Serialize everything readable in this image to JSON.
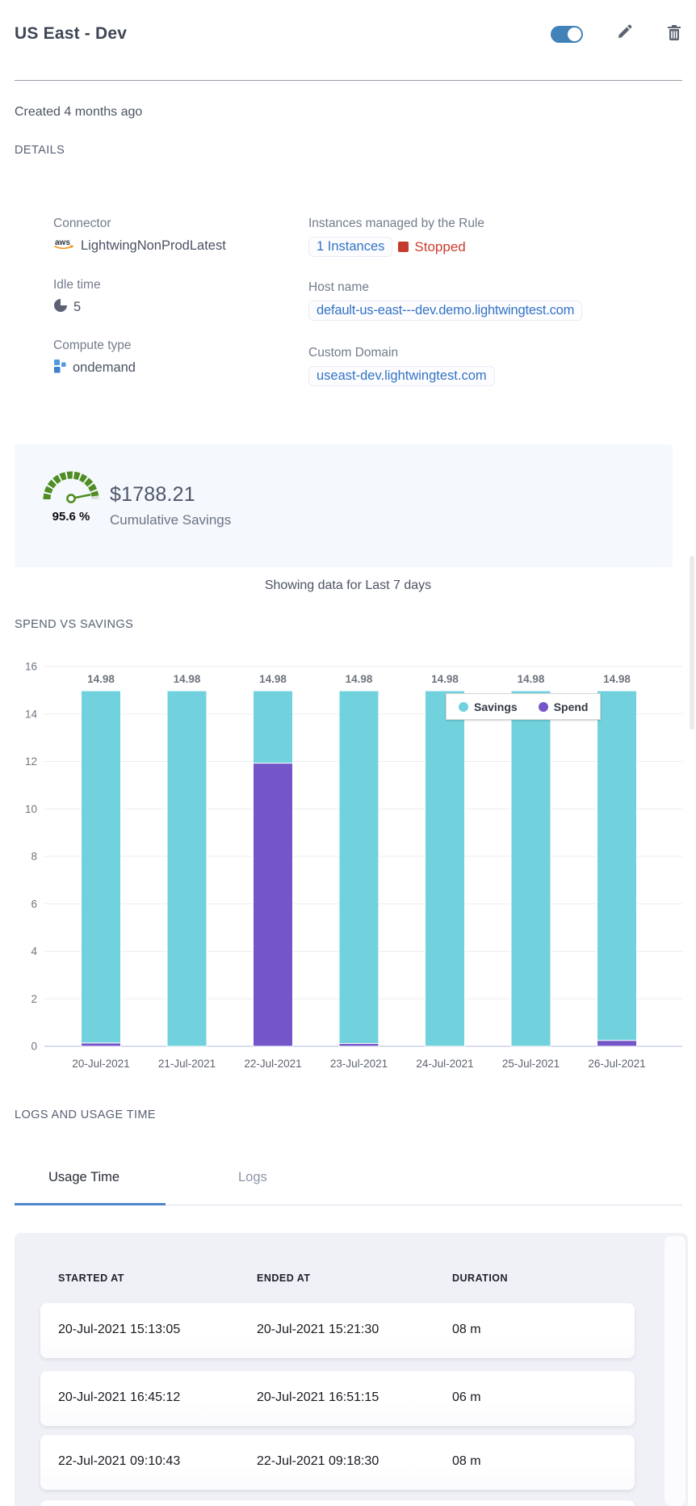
{
  "header": {
    "title": "US East - Dev",
    "toggle_state": "on"
  },
  "created_text": "Created 4 months ago",
  "details": {
    "heading": "DETAILS",
    "connector": {
      "label": "Connector",
      "value": "LightwingNonProdLatest",
      "icon": "aws-icon"
    },
    "instances": {
      "label": "Instances managed by the Rule",
      "link": "1 Instances",
      "status": "Stopped",
      "status_color": "#cb3d31"
    },
    "idle_time": {
      "label": "Idle time",
      "value": "5",
      "icon": "idle-pie-icon"
    },
    "host_name": {
      "label": "Host name",
      "value": "default-us-east---dev.demo.lightwingtest.com"
    },
    "compute_type": {
      "label": "Compute type",
      "value": "ondemand",
      "icon": "compute-squares-icon"
    },
    "custom_domain": {
      "label": "Custom Domain",
      "value": "useast-dev.lightwingtest.com"
    }
  },
  "savings_card": {
    "gauge_percent": "95.6 %",
    "amount": "$1788.21",
    "caption": "Cumulative Savings",
    "gauge_color": "#4f8d22"
  },
  "period_note": "Showing data for Last 7 days",
  "chart_section_heading": "SPEND VS SAVINGS",
  "chart_data": {
    "type": "bar",
    "stacked": true,
    "stack_order": [
      "Spend",
      "Savings"
    ],
    "categories": [
      "20-Jul-2021",
      "21-Jul-2021",
      "22-Jul-2021",
      "23-Jul-2021",
      "24-Jul-2021",
      "25-Jul-2021",
      "26-Jul-2021"
    ],
    "series": [
      {
        "name": "Savings",
        "color": "#71d2de",
        "values": [
          14.84,
          14.98,
          3.05,
          14.86,
          14.98,
          14.98,
          14.73
        ]
      },
      {
        "name": "Spend",
        "color": "#7456c8",
        "values": [
          0.14,
          0,
          11.93,
          0.12,
          0,
          0,
          0.25
        ]
      }
    ],
    "bar_labels": [
      "14.98",
      "14.98",
      "14.98",
      "14.98",
      "14.98",
      "14.98",
      "14.98"
    ],
    "title": "SPEND VS SAVINGS",
    "xlabel": "",
    "ylabel": "",
    "ylim": [
      0,
      16
    ],
    "yticks": [
      0,
      2,
      4,
      6,
      8,
      10,
      12,
      14,
      16
    ],
    "grid": true,
    "legend_position": "top-right-inside"
  },
  "logs_section": {
    "heading": "LOGS AND USAGE TIME",
    "tabs": [
      {
        "label": "Usage Time",
        "active": true
      },
      {
        "label": "Logs",
        "active": false
      }
    ]
  },
  "usage_table": {
    "columns": [
      "STARTED AT",
      "ENDED AT",
      "DURATION"
    ],
    "rows": [
      [
        "20-Jul-2021 15:13:05",
        "20-Jul-2021 15:21:30",
        "08 m"
      ],
      [
        "20-Jul-2021 16:45:12",
        "20-Jul-2021 16:51:15",
        "06 m"
      ],
      [
        "22-Jul-2021 09:10:43",
        "22-Jul-2021 09:18:30",
        "08 m"
      ]
    ]
  },
  "colors": {
    "toggle_blue": "#4182b8",
    "link_blue": "#3273c4",
    "status_red": "#cb3d31",
    "savings_teal": "#71d2de",
    "spend_purple": "#7456c8",
    "gauge_green": "#4f8d22",
    "card_bg": "#f5f8fc",
    "panel_bg": "#f0f1f7"
  },
  "icons": [
    "toggle-switch",
    "edit-pencil-icon",
    "trash-icon",
    "aws-icon",
    "idle-pie-icon",
    "compute-squares-icon"
  ]
}
